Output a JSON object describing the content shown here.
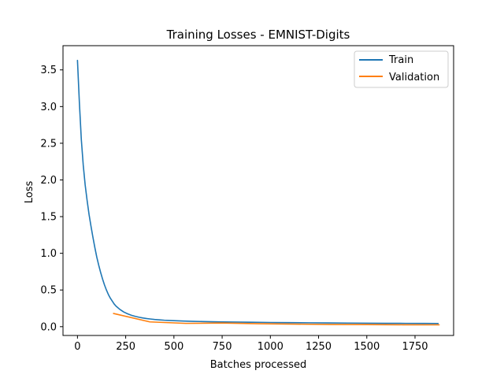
{
  "chart_data": {
    "type": "line",
    "title": "Training Losses - EMNIST-Digits",
    "xlabel": "Batches processed",
    "ylabel": "Loss",
    "xlim": [
      -75,
      1950
    ],
    "ylim": [
      -0.12,
      3.83
    ],
    "grid": false,
    "legend_position": "top-right",
    "xticks": [
      0,
      250,
      500,
      750,
      1000,
      1250,
      1500,
      1750
    ],
    "xtick_labels": [
      "0",
      "250",
      "500",
      "750",
      "1000",
      "1250",
      "1500",
      "1750"
    ],
    "yticks": [
      0.0,
      0.5,
      1.0,
      1.5,
      2.0,
      2.5,
      3.0,
      3.5
    ],
    "ytick_labels": [
      "0.0",
      "0.5",
      "1.0",
      "1.5",
      "2.0",
      "2.5",
      "3.0",
      "3.5"
    ],
    "series": [
      {
        "name": "Train",
        "color": "#1f77b4",
        "x": [
          0,
          10,
          20,
          30,
          40,
          50,
          60,
          70,
          80,
          90,
          100,
          110,
          120,
          130,
          140,
          150,
          160,
          170,
          180,
          190,
          200,
          220,
          240,
          260,
          280,
          300,
          320,
          340,
          360,
          380,
          400,
          425,
          450,
          475,
          500,
          550,
          600,
          650,
          700,
          750,
          800,
          900,
          1000,
          1100,
          1200,
          1300,
          1400,
          1500,
          1600,
          1700,
          1800,
          1870
        ],
        "y": [
          3.63,
          3.05,
          2.55,
          2.2,
          1.93,
          1.72,
          1.53,
          1.37,
          1.22,
          1.08,
          0.95,
          0.84,
          0.74,
          0.65,
          0.57,
          0.5,
          0.44,
          0.39,
          0.35,
          0.31,
          0.28,
          0.235,
          0.2,
          0.175,
          0.155,
          0.14,
          0.128,
          0.118,
          0.11,
          0.104,
          0.098,
          0.093,
          0.088,
          0.085,
          0.082,
          0.077,
          0.073,
          0.07,
          0.067,
          0.065,
          0.063,
          0.06,
          0.057,
          0.055,
          0.053,
          0.051,
          0.049,
          0.047,
          0.046,
          0.045,
          0.044,
          0.043
        ]
      },
      {
        "name": "Validation",
        "color": "#ff7f0e",
        "x": [
          187,
          375,
          562,
          750,
          937,
          1125,
          1312,
          1500,
          1687,
          1875
        ],
        "y": [
          0.18,
          0.065,
          0.045,
          0.05,
          0.04,
          0.035,
          0.03,
          0.028,
          0.026,
          0.025
        ]
      }
    ]
  }
}
